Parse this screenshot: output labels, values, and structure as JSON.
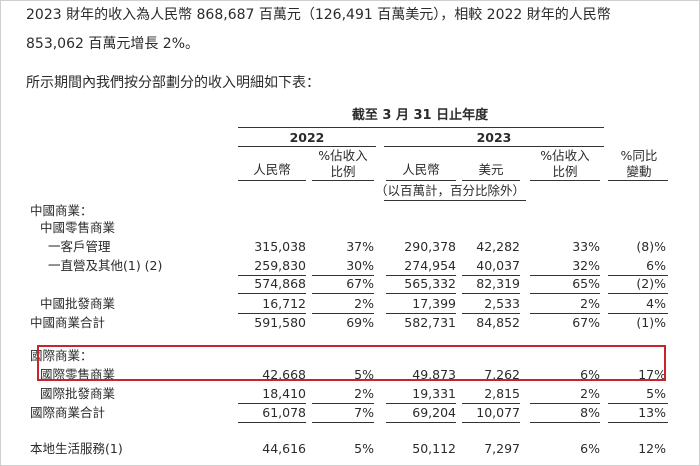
{
  "intro": {
    "line1": "2023 財年的收入為人民幣 868,687 百萬元（126,491 百萬美元），相較 2022 財年的人民幣",
    "line2": "853,062 百萬元增長 2%。",
    "line3": "所示期間內我們按分部劃分的收入明細如下表："
  },
  "table": {
    "period_header": "截至 3 月 31 日止年度",
    "year_2022": "2022",
    "year_2023": "2023",
    "columns": {
      "rmb_2022": "人民幣",
      "pct_2022": "%佔收入\n比例",
      "rmb_2023": "人民幣",
      "usd_2023": "美元",
      "pct_2023": "%佔收入\n比例",
      "yoy": "%同比\n變動"
    },
    "unit_note": "（以百萬計，百分比除外）",
    "rows": [
      {
        "label": "中國商業：",
        "indent": 0,
        "values": [
          "",
          "",
          "",
          "",
          "",
          ""
        ]
      },
      {
        "label": "中國零售商業",
        "indent": 1,
        "values": [
          "",
          "",
          "",
          "",
          "",
          ""
        ]
      },
      {
        "label": "一客戶管理",
        "indent": 2,
        "values": [
          "315,038",
          "37%",
          "290,378",
          "42,282",
          "33%",
          "(8)%"
        ]
      },
      {
        "label": "一直營及其他(1) (2)",
        "indent": 2,
        "values": [
          "259,830",
          "30%",
          "274,954",
          "40,037",
          "32%",
          "6%"
        ]
      },
      {
        "label": "",
        "indent": 2,
        "values": [
          "574,868",
          "67%",
          "565,332",
          "82,319",
          "65%",
          "(2)%"
        ]
      },
      {
        "label": "中國批發商業",
        "indent": 1,
        "values": [
          "16,712",
          "2%",
          "17,399",
          "2,533",
          "2%",
          "4%"
        ]
      },
      {
        "label": "中國商業合計",
        "indent": 0,
        "values": [
          "591,580",
          "69%",
          "582,731",
          "84,852",
          "67%",
          "(1)%"
        ]
      },
      {
        "label": "國際商業：",
        "indent": 0,
        "values": [
          "",
          "",
          "",
          "",
          "",
          ""
        ]
      },
      {
        "label": "國際零售商業",
        "indent": 1,
        "values": [
          "42,668",
          "5%",
          "49,873",
          "7,262",
          "6%",
          "17%"
        ]
      },
      {
        "label": "國際批發商業",
        "indent": 1,
        "values": [
          "18,410",
          "2%",
          "19,331",
          "2,815",
          "2%",
          "5%"
        ]
      },
      {
        "label": "國際商業合計",
        "indent": 0,
        "values": [
          "61,078",
          "7%",
          "69,204",
          "10,077",
          "8%",
          "13%"
        ]
      },
      {
        "label": "本地生活服務(1)",
        "indent": 0,
        "values": [
          "44,616",
          "5%",
          "50,112",
          "7,297",
          "6%",
          "12%"
        ]
      }
    ]
  },
  "highlight_color": "#c8242b"
}
